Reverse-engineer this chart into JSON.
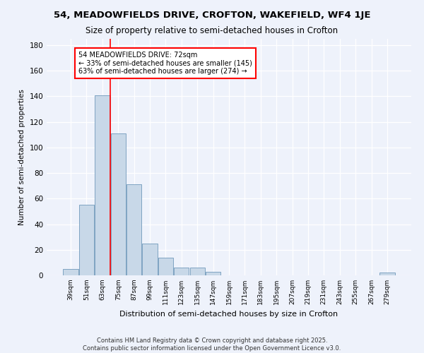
{
  "title1": "54, MEADOWFIELDS DRIVE, CROFTON, WAKEFIELD, WF4 1JE",
  "title2": "Size of property relative to semi-detached houses in Crofton",
  "xlabel": "Distribution of semi-detached houses by size in Crofton",
  "ylabel": "Number of semi-detached properties",
  "categories": [
    "39sqm",
    "51sqm",
    "63sqm",
    "75sqm",
    "87sqm",
    "99sqm",
    "111sqm",
    "123sqm",
    "135sqm",
    "147sqm",
    "159sqm",
    "171sqm",
    "183sqm",
    "195sqm",
    "207sqm",
    "219sqm",
    "231sqm",
    "243sqm",
    "255sqm",
    "267sqm",
    "279sqm"
  ],
  "values": [
    5,
    55,
    141,
    111,
    71,
    25,
    14,
    6,
    6,
    3,
    0,
    0,
    0,
    0,
    0,
    0,
    0,
    0,
    0,
    0,
    2
  ],
  "bar_color": "#c8d8e8",
  "bar_edge_color": "#7099bb",
  "annotation_title": "54 MEADOWFIELDS DRIVE: 72sqm",
  "annotation_line1": "← 33% of semi-detached houses are smaller (145)",
  "annotation_line2": "63% of semi-detached houses are larger (274) →",
  "red_line_x": 2.5,
  "ylim": [
    0,
    185
  ],
  "yticks": [
    0,
    20,
    40,
    60,
    80,
    100,
    120,
    140,
    160,
    180
  ],
  "footer1": "Contains HM Land Registry data © Crown copyright and database right 2025.",
  "footer2": "Contains public sector information licensed under the Open Government Licence v3.0.",
  "bg_color": "#eef2fb"
}
